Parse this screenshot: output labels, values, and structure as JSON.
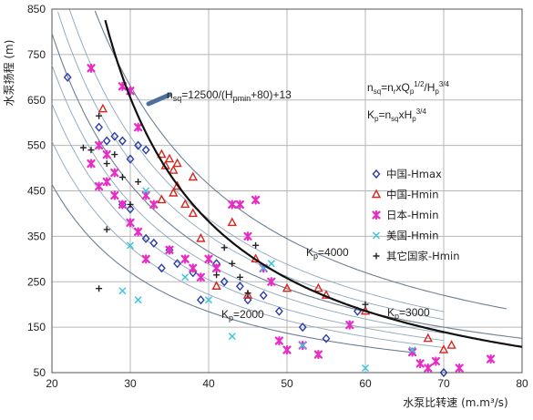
{
  "chart_data": {
    "type": "scatter",
    "xlabel": "水泵比转速 (m.m³/s)",
    "ylabel": "水泵扬程 (m)",
    "xlim": [
      20,
      80
    ],
    "ylim": [
      50,
      850
    ],
    "xticks": [
      20,
      30,
      40,
      50,
      60,
      70,
      80
    ],
    "yticks": [
      50,
      150,
      250,
      350,
      450,
      550,
      650,
      750,
      850
    ],
    "grid": true,
    "legend_position": "right",
    "annotations": {
      "main_curve_label": "nsq=12500/(Hpmin+80)+13",
      "formula1": "nsq=nrxQp1/2/Hp3/4",
      "formula2": "Kp=nsqxHp3/4",
      "curve_4000": "Kp=4000",
      "curve_3000": "Kp=3000",
      "curve_2000": "Kp=2000"
    },
    "reference_curves": [
      {
        "label": "Kp=4000",
        "k": 4000,
        "x_range": [
          20.5,
          78
        ]
      },
      {
        "label": "Kp=3000",
        "k": 3000,
        "x_range": [
          20,
          80
        ]
      },
      {
        "label": "Kp=2000",
        "k": 2000,
        "x_range": [
          20,
          66
        ]
      }
    ],
    "extra_curves_k": [
      2300,
      2550,
      2800,
      3250,
      3500
    ],
    "main_curve": {
      "formula": "H = 12500/(x-13) - 80",
      "x_range": [
        26.8,
        80
      ]
    },
    "series": [
      {
        "name": "中国-Hmax",
        "marker": "diamond",
        "color": "#2b3ea6",
        "x": [
          22,
          26,
          27,
          28,
          29,
          30,
          31,
          32,
          29,
          30,
          32,
          33,
          35,
          34,
          36,
          38,
          39,
          41,
          42,
          44,
          45,
          47,
          49,
          52,
          55,
          59,
          70
        ],
        "y": [
          700,
          590,
          560,
          570,
          560,
          520,
          550,
          540,
          420,
          410,
          345,
          335,
          320,
          280,
          290,
          270,
          210,
          290,
          250,
          240,
          210,
          220,
          185,
          150,
          125,
          185,
          50
        ]
      },
      {
        "name": "中国-Hmin",
        "marker": "triangle",
        "color": "#d7261e",
        "x": [
          26.5,
          34,
          34.5,
          35,
          35.5,
          36,
          34,
          35.5,
          36,
          37,
          38,
          39,
          41,
          45,
          46,
          50,
          54,
          55,
          60,
          68,
          70,
          71,
          38,
          43
        ],
        "y": [
          630,
          530,
          505,
          520,
          495,
          510,
          430,
          445,
          460,
          420,
          400,
          345,
          240,
          220,
          300,
          235,
          235,
          220,
          185,
          125,
          100,
          110,
          480,
          380
        ]
      },
      {
        "name": "日本-Hmin",
        "marker": "star",
        "color": "#e82cc6",
        "x": [
          25,
          26,
          25,
          27,
          28,
          29,
          30,
          31,
          26,
          27,
          28,
          29,
          30,
          31,
          32,
          33,
          32,
          35,
          37,
          38,
          39,
          40,
          41,
          43,
          44,
          45,
          46,
          47,
          48,
          49,
          50,
          52,
          54,
          58,
          66,
          67,
          68,
          69,
          72,
          76
        ],
        "y": [
          720,
          550,
          510,
          530,
          490,
          680,
          670,
          590,
          460,
          470,
          440,
          420,
          380,
          360,
          440,
          420,
          300,
          320,
          300,
          280,
          260,
          300,
          280,
          420,
          420,
          350,
          430,
          280,
          250,
          120,
          100,
          110,
          90,
          155,
          95,
          70,
          60,
          75,
          60,
          80
        ]
      },
      {
        "name": "美国-Hmin",
        "marker": "x",
        "color": "#3cc6e0",
        "x": [
          30,
          32,
          37,
          43,
          47,
          48,
          52,
          60,
          66,
          29,
          31,
          40
        ],
        "y": [
          330,
          450,
          260,
          130,
          280,
          290,
          110,
          60,
          100,
          230,
          210,
          210
        ]
      },
      {
        "name": "其它国家-Hmin",
        "marker": "plus",
        "color": "#222222",
        "x": [
          24,
          25,
          26,
          27,
          28,
          29,
          30,
          31,
          26,
          27,
          42,
          44,
          46,
          45,
          43,
          41,
          60
        ],
        "y": [
          545,
          540,
          615,
          510,
          530,
          480,
          420,
          470,
          235,
          365,
          325,
          260,
          330,
          225,
          290,
          265,
          200
        ]
      }
    ]
  }
}
